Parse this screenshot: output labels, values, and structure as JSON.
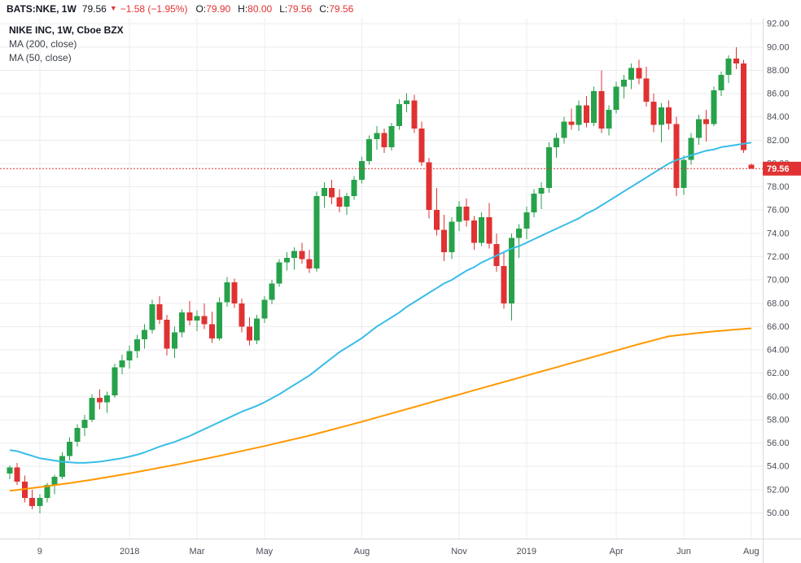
{
  "header": {
    "symbol_text": "BATS:NKE, 1W",
    "last_price": "79.56",
    "direction_icon": "▼",
    "change_text": "−1.58 (−1.95%)",
    "ohlc": [
      {
        "k": "O:",
        "v": "79.90"
      },
      {
        "k": "H:",
        "v": "80.00"
      },
      {
        "k": "L:",
        "v": "79.56"
      },
      {
        "k": "C:",
        "v": "79.56"
      }
    ]
  },
  "legend": {
    "title": "NIKE INC, 1W, Cboe BZX",
    "ma200_label": "MA (200, close)",
    "ma50_label": "MA (50, close)"
  },
  "colors": {
    "up": "#27a24b",
    "down": "#e03232",
    "ma200": "#ff9800",
    "ma50": "#38bde8",
    "price_line": "#e03232",
    "grid": "#ececf0",
    "axis_border": "#d6d9de",
    "text": "#131722"
  },
  "chart_data": {
    "type": "candlestick",
    "symbol": "NIKE INC",
    "interval": "1W",
    "exchange": "Cboe BZX",
    "title": "NIKE INC weekly candlestick chart with MA(200, close) and MA(50, close)",
    "ylim": [
      47.8,
      92.5
    ],
    "last_price": 79.56,
    "price_label": "79.56",
    "y_ticks": [
      {
        "p": 92,
        "label": "92.00"
      },
      {
        "p": 90,
        "label": "90.00"
      },
      {
        "p": 88,
        "label": "88.00"
      },
      {
        "p": 86,
        "label": "86.00"
      },
      {
        "p": 84,
        "label": "84.00"
      },
      {
        "p": 82,
        "label": "82.00"
      },
      {
        "p": 80,
        "label": "80.00"
      },
      {
        "p": 78,
        "label": "78.00"
      },
      {
        "p": 76,
        "label": "76.00"
      },
      {
        "p": 74,
        "label": "74.00"
      },
      {
        "p": 72,
        "label": "72.00"
      },
      {
        "p": 70,
        "label": "70.00"
      },
      {
        "p": 68,
        "label": "68.00"
      },
      {
        "p": 66,
        "label": "66.00"
      },
      {
        "p": 64,
        "label": "64.00"
      },
      {
        "p": 62,
        "label": "62.00"
      },
      {
        "p": 60,
        "label": "60.00"
      },
      {
        "p": 58,
        "label": "58.00"
      },
      {
        "p": 56,
        "label": "56.00"
      },
      {
        "p": 54,
        "label": "54.00"
      },
      {
        "p": 52,
        "label": "52.00"
      },
      {
        "p": 50,
        "label": "50.00"
      }
    ],
    "x_ticks": [
      {
        "i": 4,
        "label": "9"
      },
      {
        "i": 16,
        "label": "2018"
      },
      {
        "i": 25,
        "label": "Mar"
      },
      {
        "i": 34,
        "label": "May"
      },
      {
        "i": 47,
        "label": "Aug"
      },
      {
        "i": 60,
        "label": "Nov"
      },
      {
        "i": 69,
        "label": "2019"
      },
      {
        "i": 81,
        "label": "Apr"
      },
      {
        "i": 90,
        "label": "Jun"
      },
      {
        "i": 99,
        "label": "Aug"
      }
    ],
    "candles": [
      [
        53.4,
        54.1,
        52.9,
        53.9
      ],
      [
        53.9,
        54.3,
        52.4,
        52.7
      ],
      [
        52.7,
        53.2,
        50.9,
        51.3
      ],
      [
        51.3,
        52.0,
        50.3,
        50.6
      ],
      [
        50.6,
        51.6,
        49.95,
        51.3
      ],
      [
        51.3,
        52.6,
        50.9,
        52.4
      ],
      [
        52.4,
        53.3,
        51.6,
        53.1
      ],
      [
        53.1,
        55.2,
        52.9,
        54.9
      ],
      [
        54.9,
        56.5,
        54.5,
        56.1
      ],
      [
        56.1,
        57.6,
        55.7,
        57.3
      ],
      [
        57.3,
        58.4,
        56.6,
        58.0
      ],
      [
        58.0,
        60.2,
        57.8,
        59.9
      ],
      [
        59.9,
        60.6,
        58.9,
        59.5
      ],
      [
        59.5,
        60.4,
        58.6,
        60.1
      ],
      [
        60.1,
        62.8,
        59.9,
        62.5
      ],
      [
        62.5,
        63.6,
        61.9,
        63.1
      ],
      [
        63.1,
        64.4,
        62.4,
        63.9
      ],
      [
        63.9,
        65.3,
        63.3,
        64.9
      ],
      [
        64.9,
        66.2,
        64.1,
        65.7
      ],
      [
        65.7,
        68.3,
        65.4,
        67.9
      ],
      [
        67.9,
        68.6,
        66.2,
        66.6
      ],
      [
        66.6,
        67.0,
        63.5,
        64.1
      ],
      [
        64.1,
        66.0,
        63.3,
        65.5
      ],
      [
        65.5,
        67.5,
        65.1,
        67.2
      ],
      [
        67.2,
        68.2,
        66.1,
        66.5
      ],
      [
        66.5,
        67.4,
        65.6,
        66.9
      ],
      [
        66.9,
        68.0,
        65.8,
        66.2
      ],
      [
        66.2,
        67.3,
        64.6,
        65.0
      ],
      [
        65.0,
        68.5,
        64.8,
        68.1
      ],
      [
        68.1,
        70.25,
        67.7,
        69.8
      ],
      [
        69.8,
        70.1,
        67.6,
        68.0
      ],
      [
        68.0,
        68.4,
        65.5,
        66.0
      ],
      [
        66.0,
        66.8,
        64.4,
        64.8
      ],
      [
        64.8,
        67.0,
        64.5,
        66.7
      ],
      [
        66.7,
        68.6,
        66.3,
        68.3
      ],
      [
        68.3,
        70.0,
        67.9,
        69.7
      ],
      [
        69.7,
        71.8,
        69.4,
        71.5
      ],
      [
        71.5,
        72.4,
        70.8,
        71.9
      ],
      [
        71.9,
        72.8,
        70.9,
        72.5
      ],
      [
        72.5,
        73.2,
        71.4,
        71.8
      ],
      [
        71.8,
        72.6,
        70.6,
        71.0
      ],
      [
        71.0,
        77.6,
        70.7,
        77.2
      ],
      [
        77.2,
        78.4,
        76.2,
        77.9
      ],
      [
        77.9,
        78.6,
        76.5,
        77.1
      ],
      [
        77.1,
        77.8,
        75.8,
        76.3
      ],
      [
        76.3,
        77.5,
        75.6,
        77.2
      ],
      [
        77.2,
        78.9,
        76.9,
        78.6
      ],
      [
        78.6,
        80.6,
        78.3,
        80.2
      ],
      [
        80.2,
        82.4,
        79.9,
        82.1
      ],
      [
        82.1,
        83.2,
        81.2,
        82.6
      ],
      [
        82.6,
        83.0,
        80.9,
        81.4
      ],
      [
        81.4,
        83.5,
        81.1,
        83.2
      ],
      [
        83.2,
        85.5,
        82.9,
        85.1
      ],
      [
        85.1,
        86.04,
        84.4,
        85.4
      ],
      [
        85.4,
        85.9,
        82.6,
        83.0
      ],
      [
        83.0,
        83.6,
        79.8,
        80.1
      ],
      [
        80.1,
        80.5,
        75.3,
        76.0
      ],
      [
        76.0,
        77.9,
        73.8,
        74.3
      ],
      [
        74.3,
        75.6,
        71.6,
        72.4
      ],
      [
        72.4,
        75.4,
        71.8,
        75.0
      ],
      [
        75.0,
        76.8,
        74.2,
        76.3
      ],
      [
        76.3,
        77.0,
        74.6,
        75.1
      ],
      [
        75.1,
        75.5,
        72.6,
        73.2
      ],
      [
        73.2,
        75.8,
        72.9,
        75.4
      ],
      [
        75.4,
        76.6,
        72.7,
        73.1
      ],
      [
        73.1,
        74.0,
        70.7,
        71.2
      ],
      [
        71.2,
        72.4,
        67.53,
        68.0
      ],
      [
        68.0,
        74.0,
        66.53,
        73.6
      ],
      [
        73.6,
        74.8,
        71.9,
        74.4
      ],
      [
        74.4,
        76.3,
        73.5,
        75.8
      ],
      [
        75.8,
        77.8,
        75.4,
        77.4
      ],
      [
        77.4,
        78.4,
        76.1,
        77.9
      ],
      [
        77.9,
        81.8,
        77.5,
        81.4
      ],
      [
        81.4,
        82.6,
        80.5,
        82.2
      ],
      [
        82.2,
        84.0,
        81.7,
        83.6
      ],
      [
        83.6,
        84.7,
        82.9,
        83.3
      ],
      [
        83.3,
        85.4,
        82.8,
        85.0
      ],
      [
        85.0,
        85.8,
        83.1,
        83.5
      ],
      [
        83.5,
        86.6,
        83.2,
        86.2
      ],
      [
        86.2,
        88.0,
        82.6,
        83.0
      ],
      [
        83.0,
        85.0,
        82.4,
        84.6
      ],
      [
        84.6,
        87.0,
        84.3,
        86.6
      ],
      [
        86.6,
        87.6,
        85.6,
        87.2
      ],
      [
        87.2,
        88.6,
        86.4,
        88.2
      ],
      [
        88.2,
        88.9,
        86.8,
        87.3
      ],
      [
        87.3,
        88.3,
        84.9,
        85.3
      ],
      [
        85.3,
        86.0,
        82.7,
        83.3
      ],
      [
        83.3,
        85.2,
        81.8,
        84.8
      ],
      [
        84.8,
        85.4,
        82.9,
        83.4
      ],
      [
        83.4,
        84.0,
        77.2,
        77.9
      ],
      [
        77.9,
        80.7,
        77.3,
        80.3
      ],
      [
        80.3,
        82.6,
        79.9,
        82.2
      ],
      [
        82.2,
        84.2,
        81.6,
        83.8
      ],
      [
        83.8,
        84.6,
        81.9,
        83.4
      ],
      [
        83.4,
        86.6,
        83.2,
        86.3
      ],
      [
        86.3,
        87.9,
        85.8,
        87.6
      ],
      [
        87.6,
        89.3,
        86.9,
        89.0
      ],
      [
        89.0,
        90.0,
        88.1,
        88.6
      ],
      [
        88.6,
        88.9,
        80.9,
        81.14
      ],
      [
        79.9,
        80.0,
        79.56,
        79.56
      ]
    ],
    "ma50": [
      55.4,
      55.3,
      55.1,
      54.9,
      54.7,
      54.6,
      54.5,
      54.4,
      54.35,
      54.3,
      54.3,
      54.35,
      54.4,
      54.5,
      54.6,
      54.7,
      54.85,
      55.0,
      55.2,
      55.45,
      55.7,
      55.9,
      56.1,
      56.35,
      56.6,
      56.9,
      57.2,
      57.5,
      57.8,
      58.1,
      58.4,
      58.7,
      58.95,
      59.2,
      59.5,
      59.85,
      60.2,
      60.6,
      61.0,
      61.4,
      61.8,
      62.3,
      62.8,
      63.3,
      63.8,
      64.2,
      64.6,
      65.0,
      65.5,
      66.0,
      66.4,
      66.8,
      67.2,
      67.7,
      68.1,
      68.5,
      68.9,
      69.3,
      69.7,
      70.0,
      70.4,
      70.8,
      71.1,
      71.5,
      71.8,
      72.1,
      72.4,
      72.7,
      72.9,
      73.2,
      73.5,
      73.8,
      74.1,
      74.4,
      74.7,
      75.0,
      75.3,
      75.7,
      76.0,
      76.4,
      76.8,
      77.2,
      77.6,
      78.0,
      78.4,
      78.8,
      79.2,
      79.6,
      80.0,
      80.3,
      80.5,
      80.7,
      80.9,
      81.1,
      81.2,
      81.4,
      81.5,
      81.6,
      81.7,
      81.8
    ],
    "ma200": [
      51.9,
      51.98,
      52.06,
      52.14,
      52.22,
      52.3,
      52.39,
      52.48,
      52.57,
      52.66,
      52.76,
      52.86,
      52.96,
      53.07,
      53.18,
      53.29,
      53.4,
      53.52,
      53.64,
      53.76,
      53.88,
      54.0,
      54.12,
      54.25,
      54.38,
      54.51,
      54.64,
      54.77,
      54.9,
      55.04,
      55.18,
      55.32,
      55.46,
      55.6,
      55.74,
      55.89,
      56.04,
      56.19,
      56.34,
      56.49,
      56.65,
      56.81,
      56.98,
      57.15,
      57.32,
      57.49,
      57.66,
      57.83,
      58.01,
      58.19,
      58.37,
      58.55,
      58.73,
      58.91,
      59.09,
      59.27,
      59.45,
      59.63,
      59.81,
      59.99,
      60.17,
      60.35,
      60.53,
      60.71,
      60.89,
      61.07,
      61.25,
      61.43,
      61.61,
      61.79,
      61.97,
      62.15,
      62.33,
      62.51,
      62.69,
      62.87,
      63.05,
      63.23,
      63.41,
      63.59,
      63.77,
      63.95,
      64.13,
      64.31,
      64.49,
      64.66,
      64.83,
      65.0,
      65.16,
      65.24,
      65.32,
      65.39,
      65.46,
      65.52,
      65.58,
      65.64,
      65.7,
      65.75,
      65.8,
      65.85
    ]
  }
}
